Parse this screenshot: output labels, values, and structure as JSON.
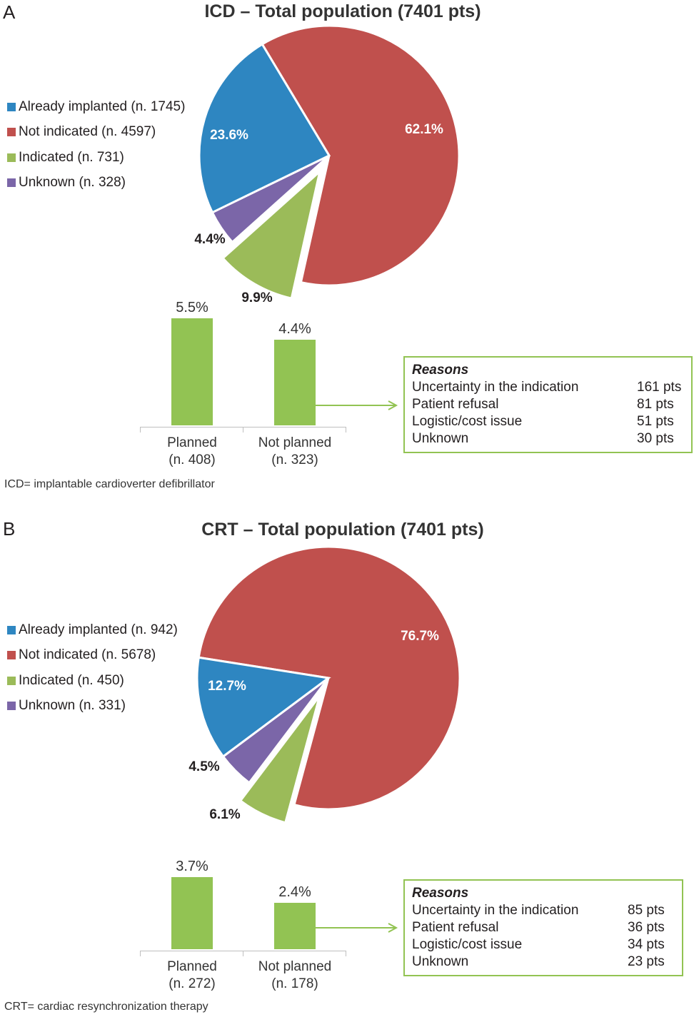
{
  "chart_data": [
    {
      "type": "pie",
      "panel_letter": "A",
      "title": "ICD – Total population (7401 pts)",
      "colors": [
        "#2e86c1",
        "#c0504d",
        "#9bbb59",
        "#7b66a8"
      ],
      "slices": [
        {
          "label": "Already implanted (n. 1745)",
          "percent": 23.6,
          "percent_label": "23.6%"
        },
        {
          "label": "Not indicated (n. 4597)",
          "percent": 62.1,
          "percent_label": "62.1%"
        },
        {
          "label": "Indicated (n. 731)",
          "percent": 9.9,
          "percent_label": "9.9%",
          "exploded": true
        },
        {
          "label": "Unknown (n. 328)",
          "percent": 4.4,
          "percent_label": "4.4%"
        }
      ],
      "bars": {
        "type": "bar",
        "categories": [
          "Planned (n. 408)",
          "Not planned (n. 323)"
        ],
        "category_lines": [
          [
            "Planned",
            "(n. 408)"
          ],
          [
            "Not planned",
            "(n. 323)"
          ]
        ],
        "values": [
          5.5,
          4.4
        ],
        "value_labels": [
          "5.5%",
          "4.4%"
        ],
        "color": "#92c353"
      },
      "reasons": {
        "title": "Reasons",
        "items": [
          {
            "label": "Uncertainty in the indication",
            "count": "161 pts"
          },
          {
            "label": "Patient refusal",
            "count": "81 pts"
          },
          {
            "label": "Logistic/cost issue",
            "count": "51 pts"
          },
          {
            "label": "Unknown",
            "count": "30 pts"
          }
        ]
      },
      "footnote": "ICD= implantable cardioverter defibrillator"
    },
    {
      "type": "pie",
      "panel_letter": "B",
      "title": "CRT – Total population (7401 pts)",
      "colors": [
        "#2e86c1",
        "#c0504d",
        "#9bbb59",
        "#7b66a8"
      ],
      "slices": [
        {
          "label": "Already implanted (n. 942)",
          "percent": 12.7,
          "percent_label": "12.7%"
        },
        {
          "label": "Not indicated (n. 5678)",
          "percent": 76.7,
          "percent_label": "76.7%"
        },
        {
          "label": "Indicated (n. 450)",
          "percent": 6.1,
          "percent_label": "6.1%",
          "exploded": true
        },
        {
          "label": "Unknown (n. 331)",
          "percent": 4.5,
          "percent_label": "4.5%"
        }
      ],
      "bars": {
        "type": "bar",
        "categories": [
          "Planned (n. 272)",
          "Not planned (n. 178)"
        ],
        "category_lines": [
          [
            "Planned",
            "(n. 272)"
          ],
          [
            "Not planned",
            "(n. 178)"
          ]
        ],
        "values": [
          3.7,
          2.4
        ],
        "value_labels": [
          "3.7%",
          "2.4%"
        ],
        "color": "#92c353"
      },
      "reasons": {
        "title": "Reasons",
        "items": [
          {
            "label": "Uncertainty in the indication",
            "count": "85 pts"
          },
          {
            "label": "Patient refusal",
            "count": "36 pts"
          },
          {
            "label": "Logistic/cost issue",
            "count": "34 pts"
          },
          {
            "label": "Unknown",
            "count": "23 pts"
          }
        ]
      },
      "footnote": "CRT= cardiac resynchronization therapy"
    }
  ]
}
